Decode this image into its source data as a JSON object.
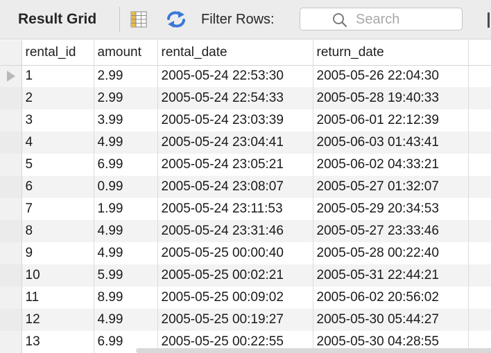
{
  "toolbar": {
    "title": "Result Grid",
    "filter_label": "Filter Rows:",
    "search_placeholder": "Search",
    "search_value": ""
  },
  "icons": {
    "grid_view": "table-grid-icon",
    "refresh": "refresh-arrows-icon",
    "search": "magnifier-icon"
  },
  "colors": {
    "refresh_icon": "#3a78d8",
    "grid_icon": "#c79a2e"
  },
  "columns": [
    "rental_id",
    "amount",
    "rental_date",
    "return_date"
  ],
  "rows": [
    [
      "1",
      "2.99",
      "2005-05-24 22:53:30",
      "2005-05-26 22:04:30"
    ],
    [
      "2",
      "2.99",
      "2005-05-24 22:54:33",
      "2005-05-28 19:40:33"
    ],
    [
      "3",
      "3.99",
      "2005-05-24 23:03:39",
      "2005-06-01 22:12:39"
    ],
    [
      "4",
      "4.99",
      "2005-05-24 23:04:41",
      "2005-06-03 01:43:41"
    ],
    [
      "5",
      "6.99",
      "2005-05-24 23:05:21",
      "2005-06-02 04:33:21"
    ],
    [
      "6",
      "0.99",
      "2005-05-24 23:08:07",
      "2005-05-27 01:32:07"
    ],
    [
      "7",
      "1.99",
      "2005-05-24 23:11:53",
      "2005-05-29 20:34:53"
    ],
    [
      "8",
      "4.99",
      "2005-05-24 23:31:46",
      "2005-05-27 23:33:46"
    ],
    [
      "9",
      "4.99",
      "2005-05-25 00:00:40",
      "2005-05-28 00:22:40"
    ],
    [
      "10",
      "5.99",
      "2005-05-25 00:02:21",
      "2005-05-31 22:44:21"
    ],
    [
      "11",
      "8.99",
      "2005-05-25 00:09:02",
      "2005-06-02 20:56:02"
    ],
    [
      "12",
      "4.99",
      "2005-05-25 00:19:27",
      "2005-05-30 05:44:27"
    ],
    [
      "13",
      "6.99",
      "2005-05-25 00:22:55",
      "2005-05-30 04:28:55"
    ]
  ]
}
